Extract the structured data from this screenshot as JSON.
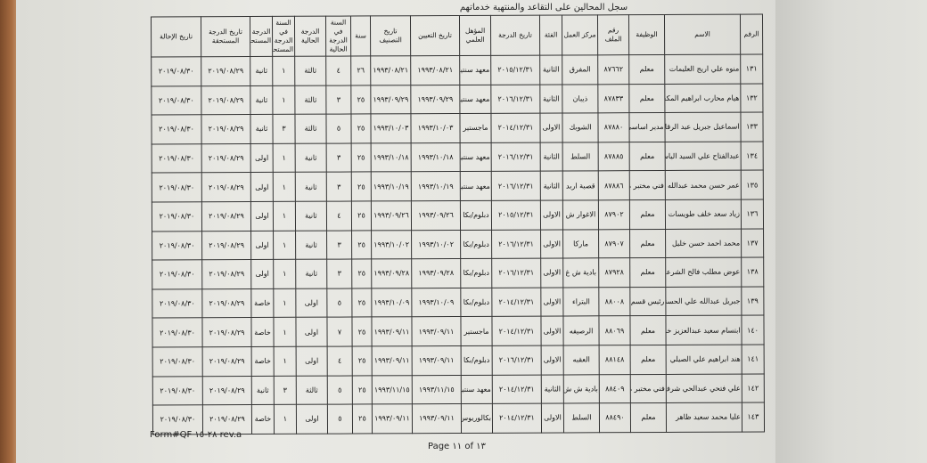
{
  "title": "سجل المحالين على التقاعد والمنتهية خدماتهم",
  "columns": [
    "الرقم",
    "الاسم",
    "الوظيفة",
    "رقم الملف",
    "مركز العمل",
    "الفئة",
    "تاريخ الدرجة",
    "المؤهل العلمي",
    "تاريخ التعيين",
    "تاريخ التصنيف",
    "سنة",
    "السنة في الدرجة الحالية",
    "الدرجة الحالية",
    "السنة في الدرجة المستحق",
    "الدرجة المستحقة",
    "تاريخ الدرجة المستحقة",
    "تاريخ الإحالة"
  ],
  "rows": [
    [
      "١٣١",
      "منوه علي اريج العليمات",
      "معلم",
      "٨٧٦٦٢",
      "المفرق",
      "الثانية",
      "٢٠١٥/١٢/٣١",
      "معهد سنتين",
      "١٩٩٣/٠٨/٢١",
      "١٩٩٣/٠٨/٢١",
      "٢٦",
      "٤",
      "ثالثة",
      "١",
      "ثانية",
      "٢٠١٩/٠٨/٢٩",
      "٢٠١٩/٠٨/٣٠"
    ],
    [
      "١٣٢",
      "هيام محارب ابراهيم المكحل",
      "معلم",
      "٨٧٨٣٣",
      "ذيبان",
      "الثانية",
      "٢٠١٦/١٢/٣١",
      "معهد سنتين",
      "١٩٩٣/٠٩/٢٩",
      "١٩٩٣/٠٩/٢٩",
      "٢٥",
      "٣",
      "ثالثة",
      "١",
      "ثانية",
      "٢٠١٩/٠٨/٢٩",
      "٢٠١٩/٠٨/٣٠"
    ],
    [
      "١٣٣",
      "اسماعيل جبريل عيد الرقايعه",
      "مدير اساسي",
      "٨٧٨٨٠",
      "الشوبك",
      "الاولى",
      "٢٠١٤/١٢/٣١",
      "ماجستير",
      "١٩٩٣/١٠/٠٣",
      "١٩٩٣/١٠/٠٣",
      "٢٥",
      "٥",
      "ثالثة",
      "٣",
      "ثانية",
      "٢٠١٩/٠٨/٢٩",
      "٢٠١٩/٠٨/٣٠"
    ],
    [
      "١٣٤",
      "عبدالفتاح علي السيد الياسين",
      "معلم",
      "٨٧٨٨٥",
      "السلط",
      "الثانية",
      "٢٠١٦/١٢/٣١",
      "معهد سنتين",
      "١٩٩٣/١٠/١٨",
      "١٩٩٣/١٠/١٨",
      "٢٥",
      "٣",
      "ثانية",
      "١",
      "اولى",
      "٢٠١٩/٠٨/٢٩",
      "٢٠١٩/٠٨/٣٠"
    ],
    [
      "١٣٥",
      "عمر حسن محمد عبدالله",
      "فني مختبر مدرسة",
      "٨٧٨٨٦",
      "قصبة اربد",
      "الثانية",
      "٢٠١٦/١٢/٣١",
      "معهد سنتين",
      "١٩٩٣/١٠/١٩",
      "١٩٩٣/١٠/١٩",
      "٢٥",
      "٣",
      "ثانية",
      "١",
      "اولى",
      "٢٠١٩/٠٨/٢٩",
      "٢٠١٩/٠٨/٣٠"
    ],
    [
      "١٣٦",
      "زياد سعد خلف طويسات",
      "معلم",
      "٨٧٩٠٢",
      "الاغوار ش",
      "الاولى",
      "٢٠١٥/١٢/٣١",
      "دبلوم/بكا",
      "١٩٩٣/٠٩/٢٦",
      "١٩٩٣/٠٩/٢٦",
      "٢٥",
      "٤",
      "ثانية",
      "١",
      "اولى",
      "٢٠١٩/٠٨/٢٩",
      "٢٠١٩/٠٨/٣٠"
    ],
    [
      "١٣٧",
      "محمد احمد حسن خليل",
      "معلم",
      "٨٧٩٠٧",
      "ماركا",
      "الاولى",
      "٢٠١٦/١٢/٣١",
      "دبلوم/بكا",
      "١٩٩٣/١٠/٠٢",
      "١٩٩٣/١٠/٠٢",
      "٢٥",
      "٣",
      "ثانية",
      "١",
      "اولى",
      "٢٠١٩/٠٨/٢٩",
      "٢٠١٩/٠٨/٣٠"
    ],
    [
      "١٣٨",
      "عوض مطلب فالح الشرعه",
      "معلم",
      "٨٧٩٢٨",
      "بادية ش غ",
      "الاولى",
      "٢٠١٦/١٢/٣١",
      "دبلوم/بكا",
      "١٩٩٣/٠٩/٢٨",
      "١٩٩٣/٠٩/٢٨",
      "٢٥",
      "٣",
      "ثانية",
      "١",
      "اولى",
      "٢٠١٩/٠٨/٢٩",
      "٢٠١٩/٠٨/٣٠"
    ],
    [
      "١٣٩",
      "جبريل عبدالله علي الحسنات",
      "رئيس قسم",
      "٨٨٠٠٨",
      "البتراء",
      "الاولى",
      "٢٠١٤/١٢/٣١",
      "دبلوم/بكا",
      "١٩٩٣/١٠/٠٩",
      "١٩٩٣/١٠/٠٩",
      "٢٥",
      "٥",
      "اولى",
      "١",
      "خاصة",
      "٢٠١٩/٠٨/٢٩",
      "٢٠١٩/٠٨/٣٠"
    ],
    [
      "١٤٠",
      "ابتسام سعيد عبدالعزيز خنفر",
      "معلم",
      "٨٨٠٦٩",
      "الرصيفه",
      "الاولى",
      "٢٠١٤/١٢/٣١",
      "ماجستير",
      "١٩٩٣/٠٩/١١",
      "١٩٩٣/٠٩/١١",
      "٢٥",
      "٧",
      "اولى",
      "١",
      "خاصة",
      "٢٠١٩/٠٨/٢٩",
      "٢٠١٩/٠٨/٣٠"
    ],
    [
      "١٤١",
      "هند ابراهيم علي الصيلي",
      "معلم",
      "٨٨١٤٨",
      "العقبه",
      "الاولى",
      "٢٠١٦/١٢/٣١",
      "دبلوم/بكا",
      "١٩٩٣/٠٩/١١",
      "١٩٩٣/٠٩/١١",
      "٢٥",
      "٤",
      "اولى",
      "١",
      "خاصة",
      "٢٠١٩/٠٨/٢٩",
      "٢٠١٩/٠٨/٣٠"
    ],
    [
      "١٤٢",
      "علي فتحي عبدالحي شرف",
      "فني مختبر مدرسة",
      "٨٨٤٠٩",
      "بادية ش ش",
      "الثانية",
      "٢٠١٤/١٢/٣١",
      "معهد سنتين",
      "١٩٩٣/١١/١٥",
      "١٩٩٣/١١/١٥",
      "٢٥",
      "٥",
      "ثالثة",
      "٣",
      "ثانية",
      "٢٠١٩/٠٨/٢٩",
      "٢٠١٩/٠٨/٣٠"
    ],
    [
      "١٤٣",
      "عليا محمد سعيد ظاهر",
      "معلم",
      "٨٨٤٩٠",
      "السلط",
      "الاولى",
      "٢٠١٤/١٢/٣١",
      "بكالوريوس",
      "١٩٩٣/٠٩/١١",
      "١٩٩٣/٠٩/١١",
      "٢٥",
      "٥",
      "اولى",
      "١",
      "خاصة",
      "٢٠١٩/٠٨/٢٩",
      "٢٠١٩/٠٨/٣٠"
    ]
  ],
  "footer": {
    "form": "Form#QF ٢٨-١٥ rev.a",
    "page": "Page ١١ of ١٣"
  }
}
